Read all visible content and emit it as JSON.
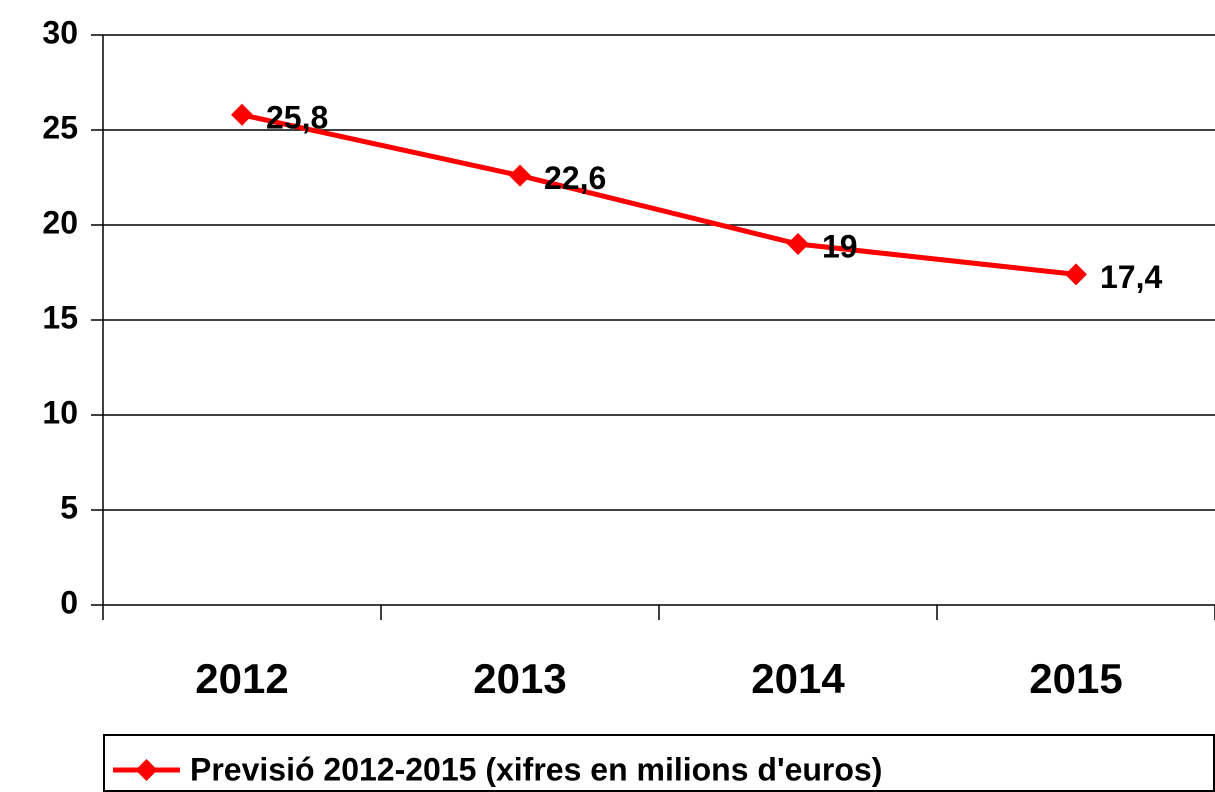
{
  "chart_data": {
    "type": "line",
    "categories": [
      "2012",
      "2013",
      "2014",
      "2015"
    ],
    "series": [
      {
        "name": "Previsió 2012-2015 (xifres en milions d'euros)",
        "color": "#ff0000",
        "values": [
          25.8,
          22.6,
          19,
          17.4
        ],
        "value_labels": [
          "25,8",
          "22,6",
          "19",
          "17,4"
        ]
      }
    ],
    "ylim": [
      0,
      30
    ],
    "yticks": [
      0,
      5,
      10,
      15,
      20,
      25,
      30
    ],
    "grid": true,
    "legend": "bottom"
  }
}
